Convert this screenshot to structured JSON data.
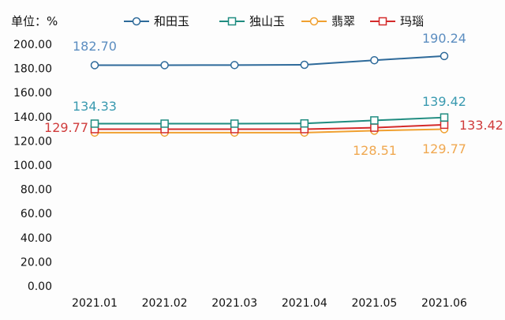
{
  "chart_data": {
    "type": "line",
    "unit_label": "单位：%",
    "categories": [
      "2021.01",
      "2021.02",
      "2021.03",
      "2021.04",
      "2021.05",
      "2021.06"
    ],
    "y_ticks": [
      "0.00",
      "20.00",
      "40.00",
      "60.00",
      "80.00",
      "100.00",
      "120.00",
      "140.00",
      "160.00",
      "180.00",
      "200.00"
    ],
    "ylim": [
      0,
      200
    ],
    "grid": false,
    "legend_position": "top",
    "series": [
      {
        "name": "和田玉",
        "color": "#2e6a9a",
        "label_color": "#5b8dc0",
        "marker": "circle",
        "values": [
          182.7,
          182.7,
          182.8,
          183.0,
          186.8,
          190.24
        ],
        "labels": [
          {
            "index": 0,
            "text": "182.70"
          },
          {
            "index": 5,
            "text": "190.24"
          }
        ]
      },
      {
        "name": "独山玉",
        "color": "#1f8c80",
        "label_color": "#3a9ab0",
        "marker": "square",
        "values": [
          134.33,
          134.33,
          134.33,
          134.5,
          137.0,
          139.42
        ],
        "labels": [
          {
            "index": 0,
            "text": "134.33"
          },
          {
            "index": 5,
            "text": "139.42"
          }
        ]
      },
      {
        "name": "翡翠",
        "color": "#f0a030",
        "label_color": "#f0a850",
        "marker": "circle",
        "values": [
          126.9,
          126.9,
          126.9,
          126.9,
          128.51,
          129.77
        ],
        "labels": [
          {
            "index": 4,
            "text": "128.51"
          },
          {
            "index": 5,
            "text": "129.77"
          }
        ]
      },
      {
        "name": "玛瑙",
        "color": "#d42a2a",
        "label_color": "#d03c3c",
        "marker": "square",
        "values": [
          129.77,
          129.77,
          129.77,
          129.77,
          131.0,
          133.42
        ],
        "labels": [
          {
            "index": 0,
            "text": "129.77"
          },
          {
            "index": 5,
            "text": "133.42"
          }
        ]
      }
    ]
  }
}
